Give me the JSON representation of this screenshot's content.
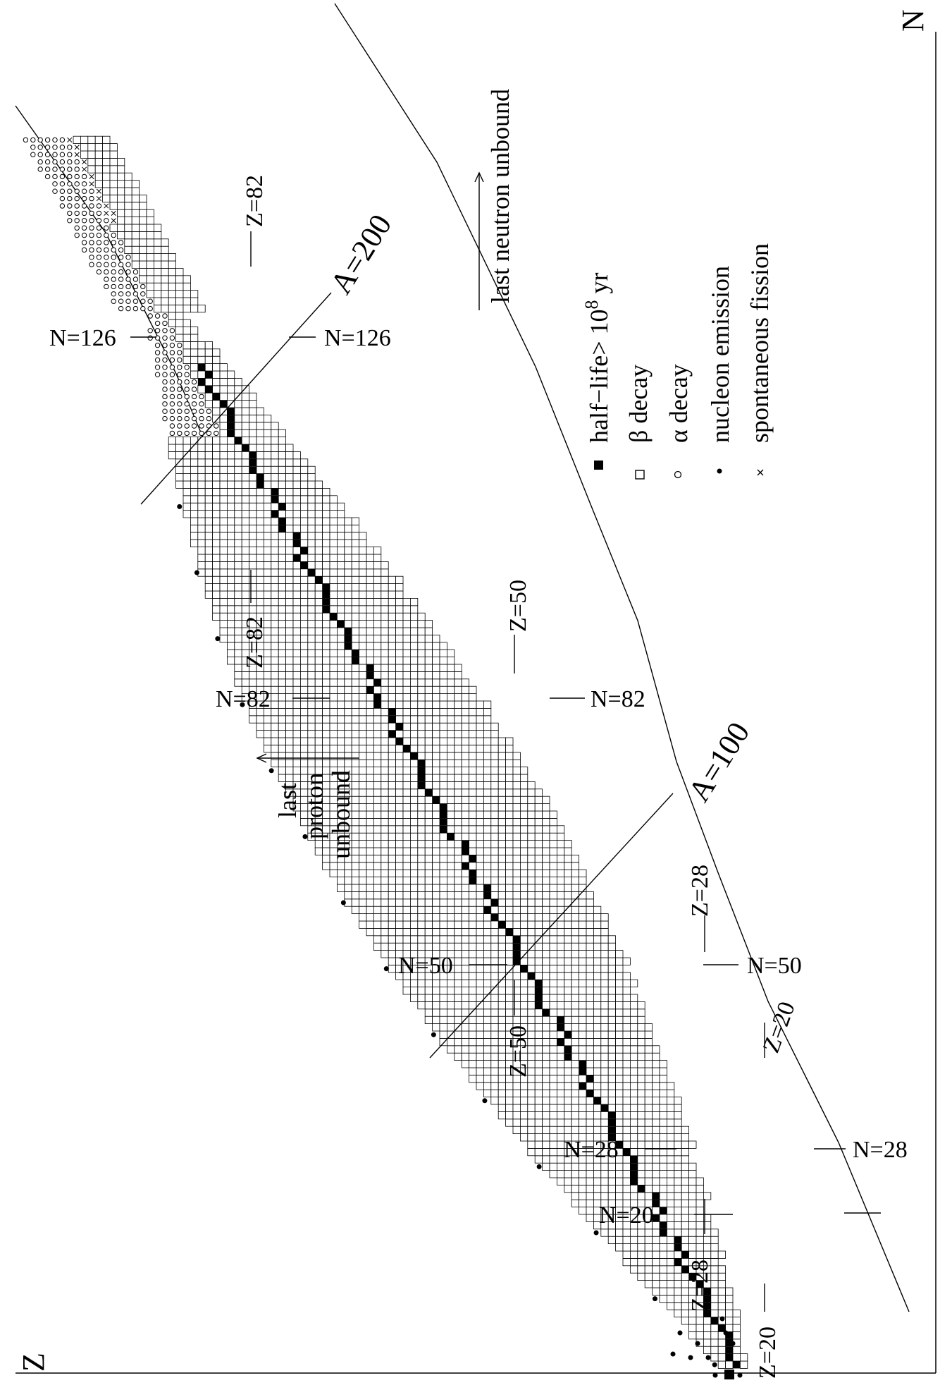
{
  "chart_data": {
    "type": "nuclide-chart",
    "orientation": "rotated 90 degrees counter-clockwise",
    "axes": {
      "n_label": "N",
      "z_label": "Z"
    },
    "annotations": {
      "last_neutron_unbound": "last neutron unbound",
      "last_proton_unbound_lines": [
        "last",
        "proton",
        "unbound"
      ],
      "a100": "A=100",
      "a200": "A=200"
    },
    "magic_labels": {
      "n126_left": "N=126",
      "n126_right": "N=126",
      "n82_left": "N=82",
      "n82_right": "N=82",
      "n50_left": "N=50",
      "n50_right": "N=50",
      "n28_left": "N=28",
      "n28_right": "N=28",
      "n20": "N=20",
      "z82_top": "Z=82",
      "z82_bottom": "Z=82",
      "z50_top": "Z=50",
      "z50_bottom": "Z=50",
      "z28_top": "Z=28",
      "z28_bottom": "Z=28",
      "z20_top": "Z=20",
      "z20_bottom": "Z=20"
    },
    "legend": [
      {
        "symbol": "filled-square",
        "label": "half−life> 10",
        "sup": "8",
        "suffix": " yr"
      },
      {
        "symbol": "open-square",
        "label": "β  decay"
      },
      {
        "symbol": "small-circle",
        "label": "α  decay"
      },
      {
        "symbol": "dot",
        "label": "nucleon emission"
      },
      {
        "symbol": "cross",
        "label": "spontaneous fission"
      }
    ]
  }
}
